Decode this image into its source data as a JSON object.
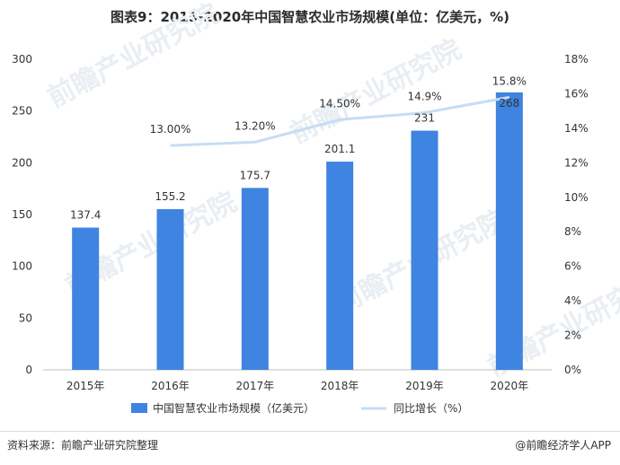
{
  "title": "图表9：2015-2020年中国智慧农业市场规模(单位：亿美元，%)",
  "source_left": "资料来源：前瞻产业研究院整理",
  "source_right": "@前瞻经济学人APP",
  "watermark": "前瞻产业研究院",
  "colors": {
    "bar": "#3f84e0",
    "line": "#c6dcf4",
    "axis": "#bfbfbf",
    "text": "#333333"
  },
  "chart_data": {
    "type": "bar",
    "categories": [
      "2015年",
      "2016年",
      "2017年",
      "2018年",
      "2019年",
      "2020年"
    ],
    "series": [
      {
        "name": "中国智慧农业市场规模（亿美元）",
        "type": "bar",
        "axis": "left",
        "values": [
          137.4,
          155.2,
          175.7,
          201.1,
          231,
          268
        ],
        "labels": [
          "137.4",
          "155.2",
          "175.7",
          "201.1",
          "231",
          "268"
        ]
      },
      {
        "name": "同比增长（%）",
        "type": "line",
        "axis": "right",
        "values": [
          null,
          13.0,
          13.2,
          14.5,
          14.9,
          15.8
        ],
        "labels": [
          "",
          "13.00%",
          "13.20%",
          "14.50%",
          "14.9%",
          "15.8%"
        ]
      }
    ],
    "left_axis": {
      "ylim": [
        0,
        300
      ],
      "ticks": [
        "0",
        "50",
        "100",
        "150",
        "200",
        "250",
        "300"
      ]
    },
    "right_axis": {
      "ylim": [
        0,
        18
      ],
      "ticks": [
        "0%",
        "2%",
        "4%",
        "6%",
        "8%",
        "10%",
        "12%",
        "14%",
        "16%",
        "18%"
      ]
    },
    "legend_position": "bottom",
    "grid": false
  }
}
